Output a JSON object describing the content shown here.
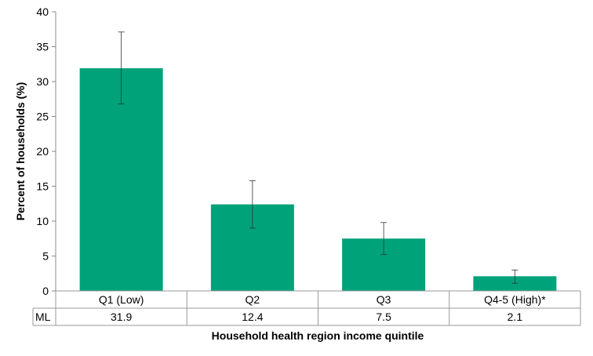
{
  "chart_data": {
    "type": "bar",
    "categories": [
      "Q1 (Low)",
      "Q2",
      "Q3",
      "Q4-5 (High)*"
    ],
    "series": [
      {
        "name": "ML",
        "values": [
          31.9,
          12.4,
          7.5,
          2.1
        ],
        "error_low": [
          26.8,
          9.0,
          5.2,
          1.1
        ],
        "error_high": [
          37.1,
          15.8,
          9.8,
          3.0
        ],
        "color": "#00A27A"
      }
    ],
    "xlabel": "Household health region income quintile",
    "ylabel": "Percent of households (%)",
    "ylim": [
      0,
      40
    ],
    "yticks": [
      0,
      5,
      10,
      15,
      20,
      25,
      30,
      35,
      40
    ],
    "data_table": {
      "row_label": "ML",
      "values": [
        "31.9",
        "12.4",
        "7.5",
        "2.1"
      ]
    },
    "grid": false,
    "legend": "none"
  }
}
